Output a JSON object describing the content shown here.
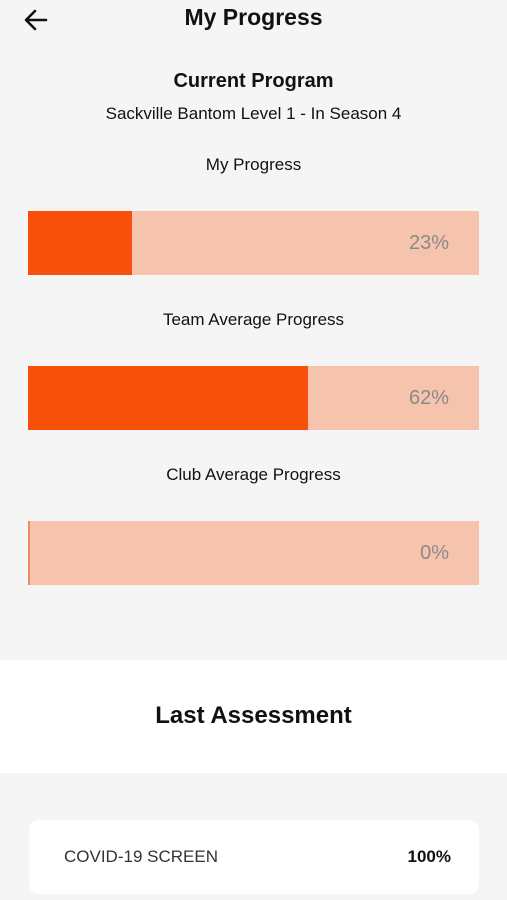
{
  "header": {
    "title": "My Progress",
    "back_icon": "arrow-left-icon"
  },
  "program": {
    "heading": "Current Program",
    "name": "Sackville Bantom Level 1 - In Season 4"
  },
  "progress": [
    {
      "label": "My Progress",
      "value_text": "23%",
      "fraction": 0.23
    },
    {
      "label": "Team Average Progress",
      "value_text": "62%",
      "fraction": 0.62
    },
    {
      "label": "Club Average Progress",
      "value_text": "0%",
      "fraction": 0.0
    }
  ],
  "assessment": {
    "heading": "Last Assessment",
    "items": [
      {
        "name": "COVID-19 SCREEN",
        "score": "100%"
      }
    ]
  },
  "colors": {
    "accent": "#f84f0a",
    "track": "#f6c3ad",
    "background": "#f5f5f5"
  }
}
